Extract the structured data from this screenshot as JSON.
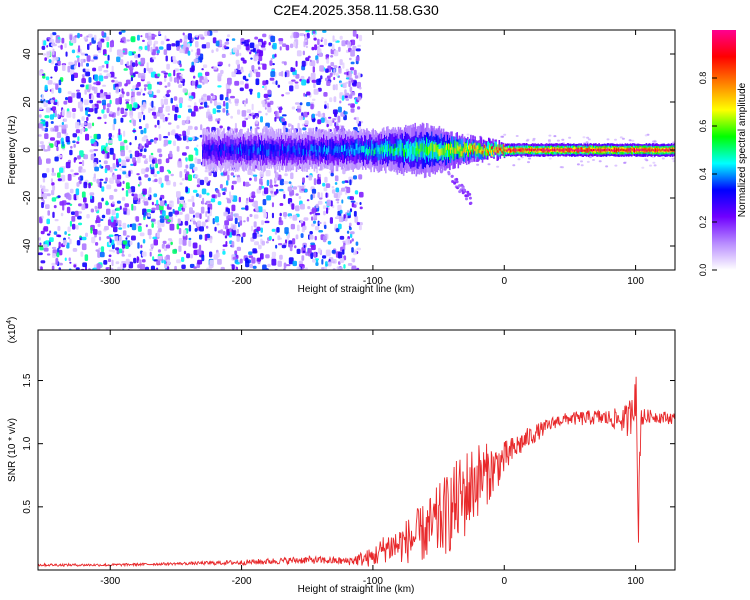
{
  "title": "C2E4.2025.358.11.58.G30",
  "chart_data": [
    {
      "type": "heatmap",
      "name": "spectrogram",
      "xlabel": "Height of straight line (km)",
      "ylabel": "Frequency (Hz)",
      "xlim": [
        -355,
        130
      ],
      "ylim": [
        -50,
        50
      ],
      "xticks": [
        -300,
        -200,
        -100,
        0,
        100
      ],
      "xtick_labels": [
        "-300",
        "-200",
        "-100",
        "0",
        "100"
      ],
      "yticks": [
        -40,
        -20,
        0,
        20,
        40
      ],
      "ytick_labels": [
        "-40",
        "-20",
        "0",
        "20",
        "40"
      ],
      "ridge": {
        "description": "Signal ridge near 0 Hz; amplitude increases toward positive heights",
        "x": [
          -230,
          -200,
          -150,
          -100,
          -60,
          -30,
          0,
          50,
          100,
          130
        ],
        "amplitude": [
          0.3,
          0.35,
          0.35,
          0.45,
          0.55,
          0.7,
          0.9,
          0.95,
          0.95,
          0.95
        ],
        "half_width_hz": [
          3,
          3,
          3,
          3,
          4,
          2,
          1,
          1,
          1,
          1
        ]
      },
      "noise_region_x": [
        -355,
        -110
      ],
      "colorbar": {
        "label": "Normalized spectral amplitude",
        "range": [
          0,
          1
        ],
        "ticks": [
          0.0,
          0.2,
          0.4,
          0.6,
          0.8
        ],
        "tick_labels": [
          "0.0",
          "0.2",
          "0.4",
          "0.6",
          "0.8"
        ],
        "colors": [
          "#ffffff",
          "#b88cff",
          "#7000ff",
          "#0000ff",
          "#00ffff",
          "#00ff00",
          "#ffff00",
          "#ff8000",
          "#ff0000",
          "#ff0090"
        ]
      }
    },
    {
      "type": "line",
      "name": "snr",
      "xlabel": "Height of straight line (km)",
      "ylabel": "SNR (10 * v/v)",
      "scale_label": "(x10",
      "scale_exponent": "4",
      "scale_suffix": ")",
      "xlim": [
        -355,
        130
      ],
      "ylim": [
        0,
        1.9
      ],
      "xticks": [
        -300,
        -200,
        -100,
        0,
        100
      ],
      "xtick_labels": [
        "-300",
        "-200",
        "-100",
        "0",
        "100"
      ],
      "yticks": [
        0.5,
        1.0,
        1.5
      ],
      "ytick_labels": [
        "0.5",
        "1.0",
        "1.5"
      ],
      "color": "#e8292b",
      "series": [
        {
          "name": "SNR",
          "x": [
            -355,
            -300,
            -250,
            -200,
            -150,
            -120,
            -100,
            -90,
            -80,
            -70,
            -60,
            -50,
            -40,
            -30,
            -20,
            -10,
            0,
            10,
            20,
            30,
            40,
            50,
            60,
            70,
            80,
            90,
            95,
            100,
            102,
            104,
            106,
            110,
            120,
            130
          ],
          "y": [
            0.04,
            0.04,
            0.05,
            0.06,
            0.08,
            0.07,
            0.1,
            0.18,
            0.2,
            0.25,
            0.3,
            0.38,
            0.48,
            0.6,
            0.72,
            0.78,
            0.88,
            0.98,
            1.06,
            1.12,
            1.18,
            1.2,
            1.2,
            1.21,
            1.2,
            1.19,
            1.18,
            1.5,
            0.35,
            1.25,
            1.2,
            1.22,
            1.21,
            1.2
          ],
          "spread": [
            0.01,
            0.01,
            0.01,
            0.02,
            0.03,
            0.03,
            0.08,
            0.12,
            0.15,
            0.2,
            0.24,
            0.3,
            0.34,
            0.36,
            0.3,
            0.22,
            0.14,
            0.1,
            0.08,
            0.06,
            0.05,
            0.05,
            0.06,
            0.06,
            0.07,
            0.1,
            0.15,
            0.3,
            0.25,
            0.15,
            0.08,
            0.05,
            0.05,
            0.05
          ]
        }
      ]
    }
  ]
}
